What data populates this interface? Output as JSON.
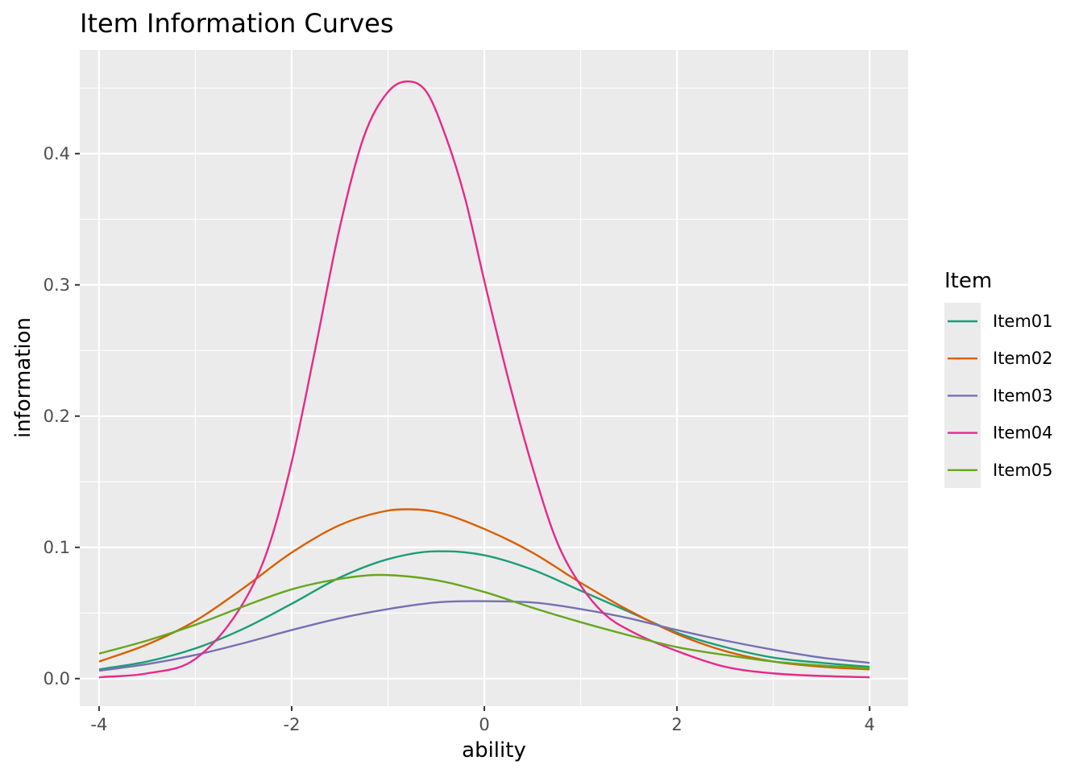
{
  "chart_data": {
    "type": "line",
    "title": "Item Information Curves",
    "xlabel": "ability",
    "ylabel": "information",
    "xlim": [
      -4.2,
      4.4
    ],
    "ylim": [
      -0.021,
      0.479
    ],
    "x_ticks": [
      -4,
      -2,
      0,
      2,
      4
    ],
    "x_tick_labels": [
      "-4",
      "-2",
      "0",
      "2",
      "4"
    ],
    "y_ticks": [
      0.0,
      0.1,
      0.2,
      0.3,
      0.4
    ],
    "y_tick_labels": [
      "0.0",
      "0.1",
      "0.2",
      "0.3",
      "0.4"
    ],
    "grid": true,
    "panel_background": "#EBEBEB",
    "grid_color": "#FFFFFF",
    "legend": {
      "title": "Item",
      "position": "right"
    },
    "series": [
      {
        "name": "Item01",
        "color": "#1B9E77",
        "x": [
          -4,
          -3.5,
          -3,
          -2.5,
          -2,
          -1.5,
          -1,
          -0.5,
          -0.4,
          0,
          0.5,
          1,
          1.5,
          2,
          2.5,
          3,
          3.5,
          4
        ],
        "y": [
          0.007,
          0.013,
          0.023,
          0.038,
          0.057,
          0.077,
          0.091,
          0.097,
          0.097,
          0.094,
          0.083,
          0.067,
          0.051,
          0.035,
          0.024,
          0.016,
          0.012,
          0.009
        ]
      },
      {
        "name": "Item02",
        "color": "#D95F02",
        "x": [
          -4,
          -3.5,
          -3,
          -2.5,
          -2,
          -1.5,
          -1,
          -0.8,
          -0.5,
          0,
          0.5,
          1,
          1.5,
          2,
          2.5,
          3,
          3.5,
          4
        ],
        "y": [
          0.013,
          0.026,
          0.044,
          0.069,
          0.096,
          0.117,
          0.128,
          0.129,
          0.127,
          0.114,
          0.096,
          0.073,
          0.052,
          0.034,
          0.021,
          0.013,
          0.009,
          0.007
        ]
      },
      {
        "name": "Item03",
        "color": "#7570B3",
        "x": [
          -4,
          -3.5,
          -3,
          -2.5,
          -2,
          -1.5,
          -1,
          -0.5,
          -0.1,
          0.5,
          1,
          1.5,
          2,
          2.5,
          3,
          3.5,
          4
        ],
        "y": [
          0.006,
          0.011,
          0.018,
          0.027,
          0.037,
          0.046,
          0.053,
          0.058,
          0.059,
          0.058,
          0.053,
          0.046,
          0.037,
          0.029,
          0.022,
          0.016,
          0.012
        ]
      },
      {
        "name": "Item04",
        "color": "#E7298A",
        "x": [
          -4,
          -3.5,
          -3,
          -2.5,
          -2.25,
          -2,
          -1.75,
          -1.5,
          -1.25,
          -1,
          -0.8,
          -0.6,
          -0.4,
          -0.2,
          0,
          0.25,
          0.5,
          0.75,
          1,
          1.25,
          1.5,
          2,
          2.5,
          3,
          3.5,
          4
        ],
        "y": [
          0.001,
          0.004,
          0.015,
          0.058,
          0.098,
          0.165,
          0.253,
          0.344,
          0.413,
          0.447,
          0.455,
          0.447,
          0.413,
          0.366,
          0.303,
          0.228,
          0.161,
          0.105,
          0.071,
          0.049,
          0.037,
          0.021,
          0.009,
          0.004,
          0.002,
          0.001
        ]
      },
      {
        "name": "Item05",
        "color": "#66A61E",
        "x": [
          -4,
          -3.5,
          -3,
          -2.5,
          -2,
          -1.5,
          -1.1,
          -0.5,
          0,
          0.5,
          1,
          1.5,
          2,
          2.5,
          3,
          3.5,
          4
        ],
        "y": [
          0.019,
          0.029,
          0.041,
          0.055,
          0.068,
          0.076,
          0.079,
          0.075,
          0.066,
          0.054,
          0.043,
          0.033,
          0.024,
          0.018,
          0.013,
          0.01,
          0.008
        ]
      }
    ]
  }
}
